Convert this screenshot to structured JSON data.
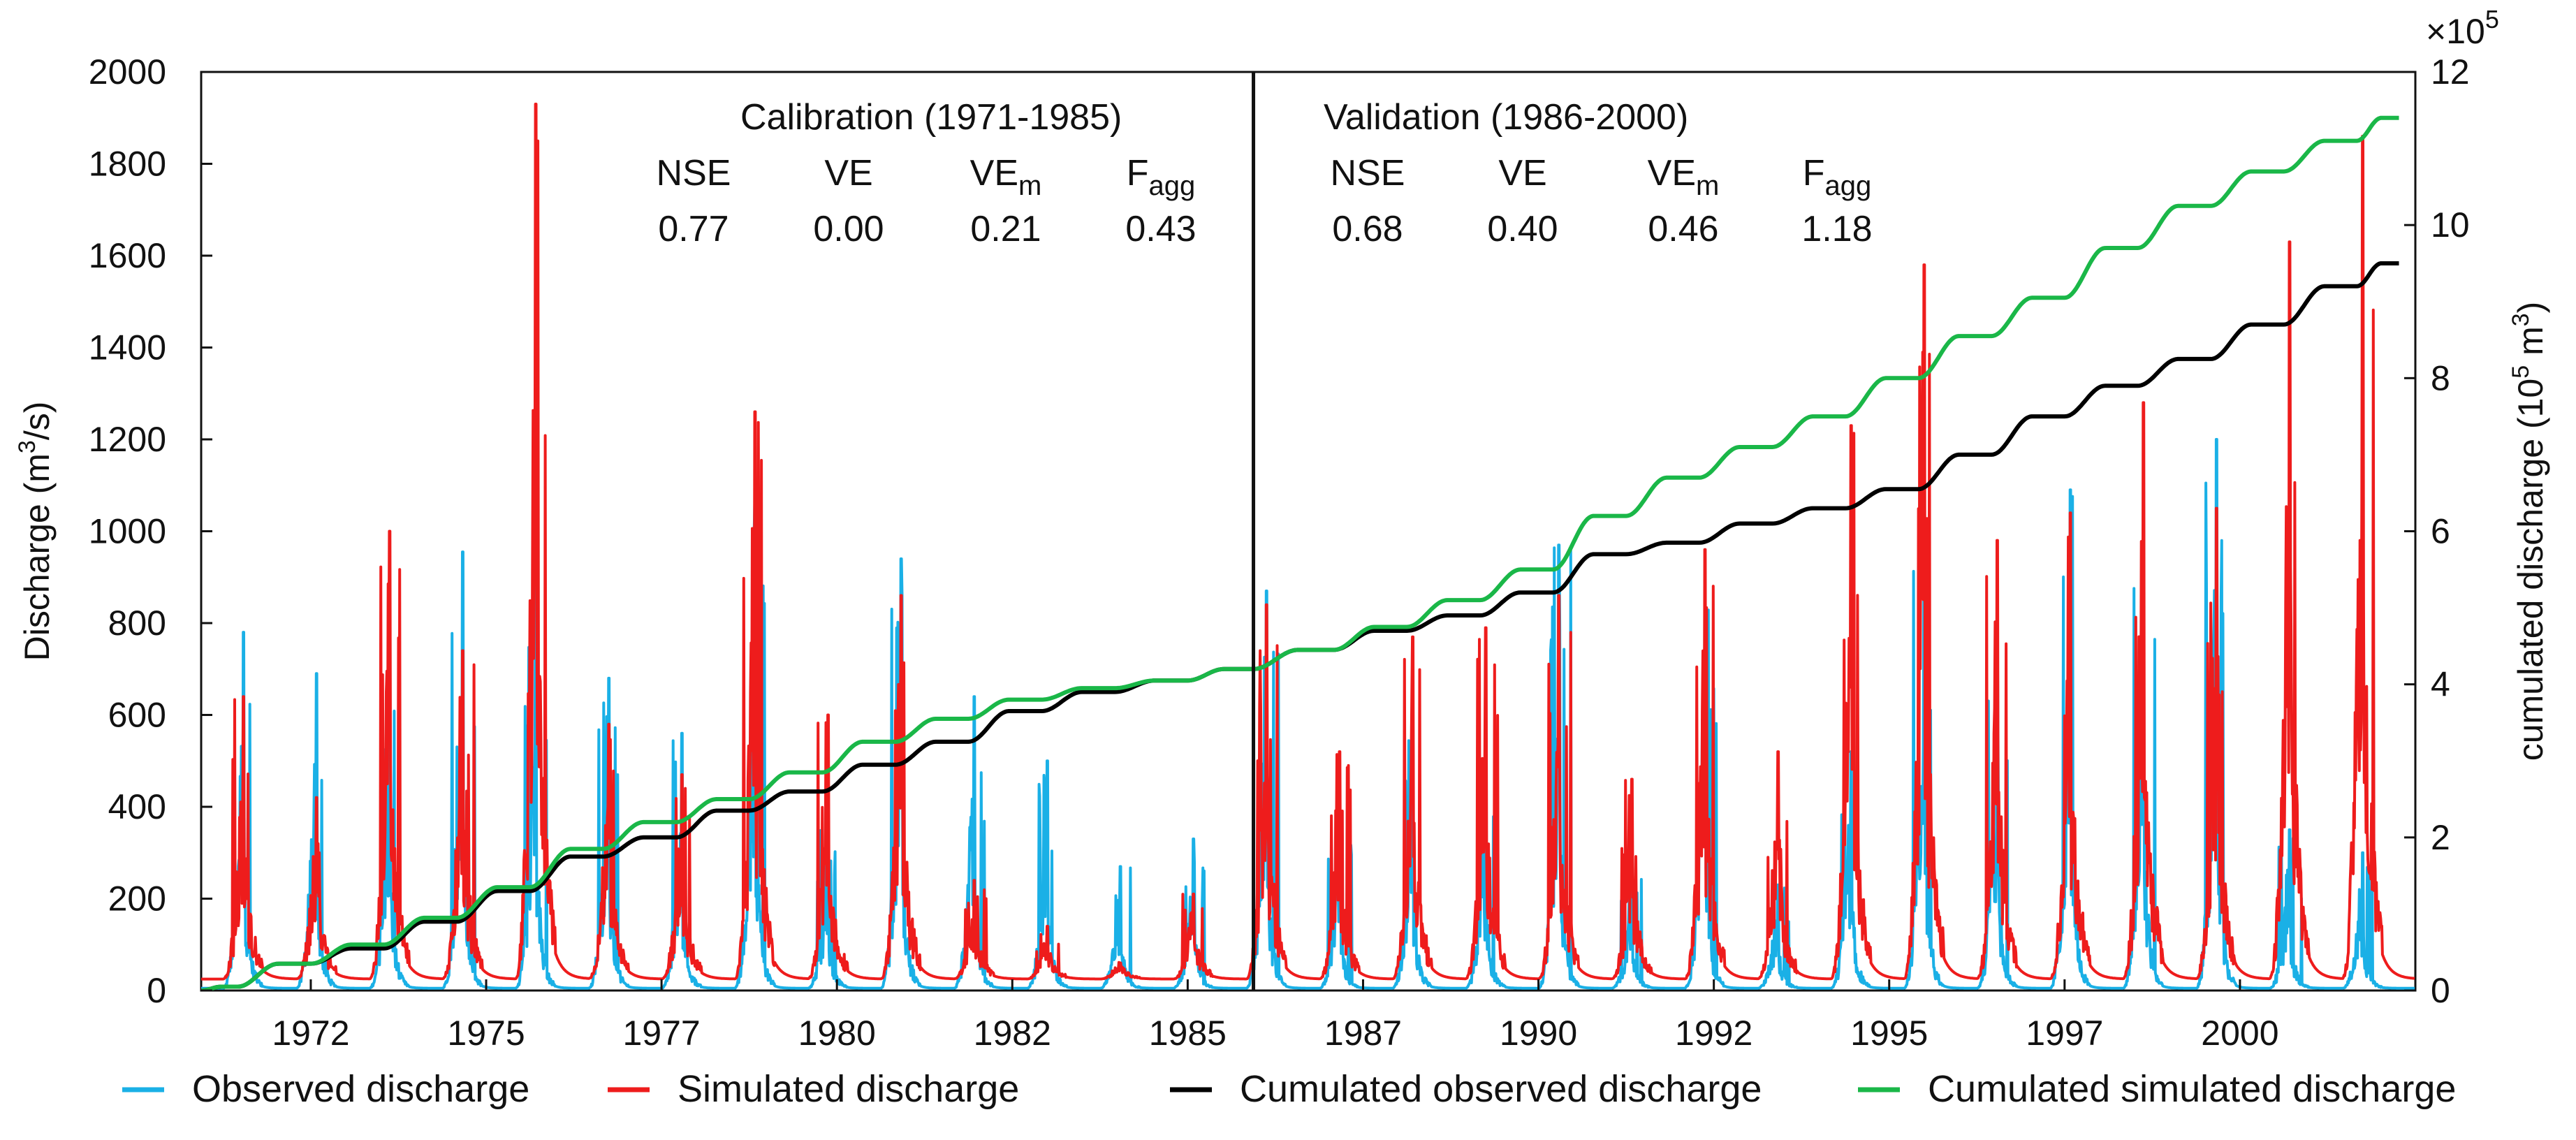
{
  "chart_data": {
    "type": "line",
    "xlabel": "",
    "ylabel": "Discharge (m3/s)",
    "ylabel_parts": {
      "pre": "Discharge (m",
      "sup": "3",
      "post": "/s)"
    },
    "y2label": "cumulated discharge (10^5 m^3)",
    "y2label_parts": {
      "pre": "cumulated discharge (10",
      "sup1": "5",
      "mid": " m",
      "sup2": "3",
      "post": ")"
    },
    "y2_multiplier": {
      "base": "×10",
      "exp": "5"
    },
    "x_range": [
      1970.7,
      2001.0
    ],
    "x_ticks": [
      {
        "label": "1972",
        "pos": 1972.2
      },
      {
        "label": "1975",
        "pos": 1974.6
      },
      {
        "label": "1977",
        "pos": 1977.0
      },
      {
        "label": "1980",
        "pos": 1979.4
      },
      {
        "label": "1982",
        "pos": 1981.8
      },
      {
        "label": "1985",
        "pos": 1984.2
      },
      {
        "label": "1987",
        "pos": 1986.6
      },
      {
        "label": "1990",
        "pos": 1989.0
      },
      {
        "label": "1992",
        "pos": 1991.4
      },
      {
        "label": "1995",
        "pos": 1993.8
      },
      {
        "label": "1997",
        "pos": 1996.2
      },
      {
        "label": "2000",
        "pos": 1998.6
      }
    ],
    "ylim": [
      0,
      2000
    ],
    "y_ticks": [
      0,
      200,
      400,
      600,
      800,
      1000,
      1200,
      1400,
      1600,
      1800,
      2000
    ],
    "y2lim": [
      0,
      12
    ],
    "y2_ticks": [
      0,
      2,
      4,
      6,
      8,
      10,
      12
    ],
    "split_x": 1985.1,
    "periods": [
      {
        "title": "Calibration (1971-1985)",
        "metrics": [
          {
            "base": "NSE",
            "sub": "",
            "value": "0.77"
          },
          {
            "base": "VE",
            "sub": "",
            "value": "0.00"
          },
          {
            "base": "VE",
            "sub": "m",
            "value": "0.21"
          },
          {
            "base": "F",
            "sub": "agg",
            "value": "0.43"
          }
        ]
      },
      {
        "title": "Validation (1986-2000)",
        "metrics": [
          {
            "base": "NSE",
            "sub": "",
            "value": "0.68"
          },
          {
            "base": "VE",
            "sub": "",
            "value": "0.40"
          },
          {
            "base": "VE",
            "sub": "m",
            "value": "0.46"
          },
          {
            "base": "F",
            "sub": "agg",
            "value": "1.18"
          }
        ]
      }
    ],
    "series": [
      {
        "name": "Observed discharge",
        "color": "#1ab0e6",
        "axis": "left",
        "kind": "hydrograph",
        "annual_peaks": [
          780,
          690,
          640,
          955,
          940,
          680,
          560,
          1060,
          370,
          940,
          640,
          500,
          270,
          330,
          870,
          380,
          580,
          480,
          970,
          250,
          880,
          230,
          520,
          1000,
          730,
          1090,
          920,
          1200,
          350,
          300
        ]
      },
      {
        "name": "Simulated discharge",
        "color": "#ee1c1c",
        "axis": "left",
        "kind": "hydrograph",
        "annual_peaks": [
          640,
          420,
          1000,
          740,
          1930,
          580,
          470,
          1260,
          600,
          860,
          240,
          140,
          60,
          210,
          840,
          520,
          770,
          790,
          860,
          460,
          960,
          520,
          1230,
          1580,
          980,
          1040,
          1280,
          1050,
          1630,
          1860
        ]
      },
      {
        "name": "Cumulated observed discharge",
        "color": "#000000",
        "axis": "right",
        "kind": "cumulative",
        "x": [
          1970.7,
          1971.2,
          1972.2,
          1973.2,
          1974.2,
          1975.2,
          1976.2,
          1977.2,
          1978.2,
          1979.2,
          1980.2,
          1981.2,
          1982.2,
          1983.2,
          1984.2,
          1985.1,
          1986.2,
          1987.2,
          1988.2,
          1989.2,
          1990.2,
          1991.2,
          1992.2,
          1993.2,
          1994.2,
          1995.2,
          1996.2,
          1997.2,
          1998.2,
          1999.2,
          2000.2,
          2000.8
        ],
        "values": [
          0,
          0.05,
          0.35,
          0.55,
          0.9,
          1.3,
          1.75,
          2.0,
          2.35,
          2.6,
          2.95,
          3.25,
          3.65,
          3.9,
          4.05,
          4.2,
          4.45,
          4.7,
          4.9,
          5.2,
          5.7,
          5.85,
          6.1,
          6.3,
          6.55,
          7.0,
          7.5,
          7.9,
          8.25,
          8.7,
          9.2,
          9.5
        ]
      },
      {
        "name": "Cumulated simulated discharge",
        "color": "#1ab748",
        "axis": "right",
        "kind": "cumulative",
        "x": [
          1970.7,
          1971.2,
          1972.2,
          1973.2,
          1974.2,
          1975.2,
          1976.2,
          1977.2,
          1978.2,
          1979.2,
          1980.2,
          1981.2,
          1982.2,
          1983.2,
          1984.2,
          1985.1,
          1986.2,
          1987.2,
          1988.2,
          1989.2,
          1990.2,
          1991.2,
          1992.2,
          1993.2,
          1994.2,
          1995.2,
          1996.2,
          1997.2,
          1998.2,
          1999.2,
          2000.2,
          2000.8
        ],
        "values": [
          0,
          0.05,
          0.35,
          0.6,
          0.95,
          1.35,
          1.85,
          2.2,
          2.5,
          2.85,
          3.25,
          3.55,
          3.8,
          3.95,
          4.05,
          4.2,
          4.45,
          4.75,
          5.1,
          5.5,
          6.2,
          6.7,
          7.1,
          7.5,
          8.0,
          8.55,
          9.05,
          9.7,
          10.25,
          10.7,
          11.1,
          11.4
        ]
      }
    ],
    "legend": {
      "placement": "bottom",
      "items": [
        {
          "label": "Observed discharge",
          "color": "#1ab0e6"
        },
        {
          "label": "Simulated discharge",
          "color": "#ee1c1c"
        },
        {
          "label": "Cumulated observed discharge",
          "color": "#000000"
        },
        {
          "label": "Cumulated simulated discharge",
          "color": "#1ab748"
        }
      ]
    }
  }
}
